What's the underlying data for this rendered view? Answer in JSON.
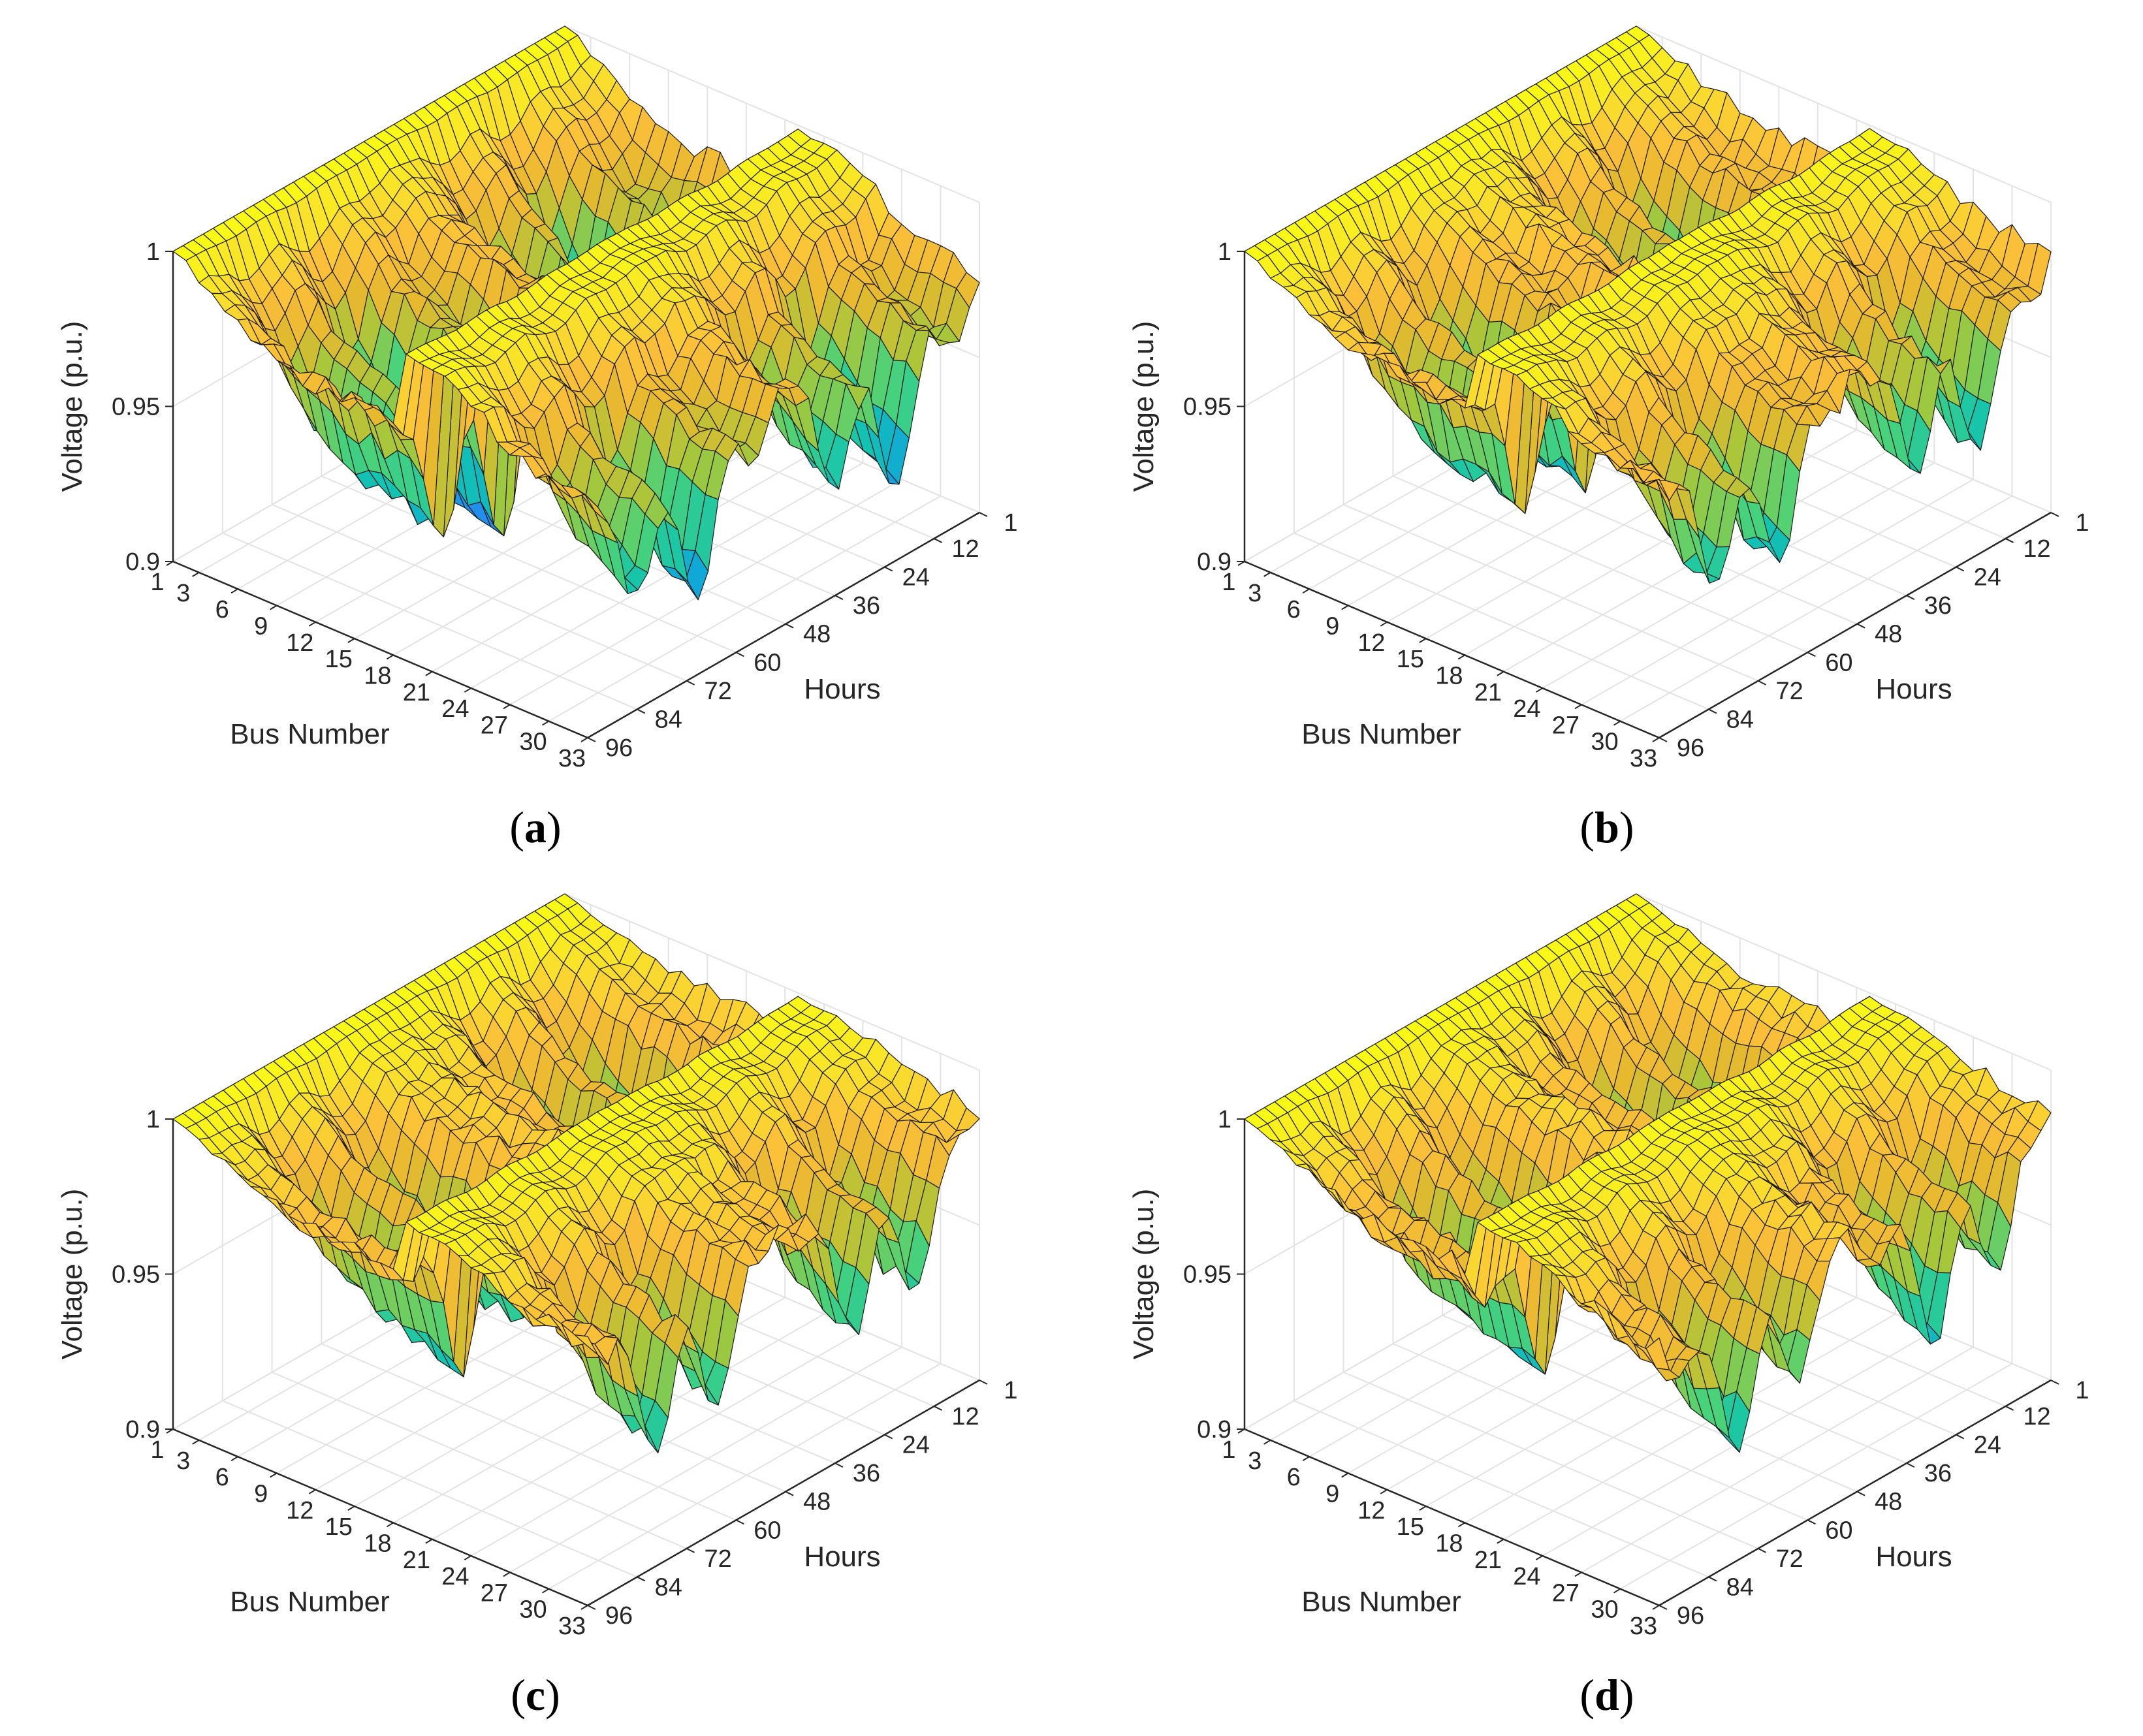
{
  "panels": [
    {
      "caption": "a",
      "profile": "a"
    },
    {
      "caption": "b",
      "profile": "b"
    },
    {
      "caption": "c",
      "profile": "c"
    },
    {
      "caption": "d",
      "profile": "d"
    }
  ],
  "axes": {
    "xlabel": "Bus Number",
    "ylabel": "Hours",
    "zlabel": "Voltage (p.u.)",
    "bus_ticks": [
      "1",
      "3",
      "6",
      "9",
      "12",
      "15",
      "18",
      "21",
      "24",
      "27",
      "30",
      "33"
    ],
    "hour_ticks": [
      "1",
      "12",
      "24",
      "36",
      "48",
      "60",
      "72",
      "84",
      "96"
    ],
    "voltage_ticks": [
      "0.9",
      "0.95",
      "1"
    ]
  },
  "colors": {
    "colormap": [
      "#3E26A8",
      "#4743F0",
      "#2C80F7",
      "#10A9D7",
      "#14C4AE",
      "#49D27A",
      "#A6C73B",
      "#E6B92F",
      "#FBBF3A",
      "#F9E02C",
      "#F9FB15"
    ],
    "edge": "#1a1a1a",
    "grid": "#e3e3e3",
    "axis": "#262626"
  },
  "chart_data": [
    {
      "type": "surface",
      "panel": "a",
      "x_label": "Bus Number",
      "y_label": "Hours",
      "z_label": "Voltage (p.u.)",
      "x_range": [
        1,
        33
      ],
      "y_range": [
        1,
        96
      ],
      "z_range": [
        0.9,
        1.0
      ],
      "buses": [
        1,
        2,
        3,
        4,
        5,
        6,
        7,
        8,
        9,
        10,
        11,
        12,
        13,
        14,
        15,
        16,
        17,
        18,
        19,
        20,
        21,
        22,
        23,
        24,
        25,
        26,
        27,
        28,
        29,
        30,
        31,
        32,
        33
      ],
      "voltage_by_bus_min": [
        1.0,
        0.997,
        0.983,
        0.975,
        0.968,
        0.955,
        0.945,
        0.938,
        0.933,
        0.929,
        0.927,
        0.925,
        0.923,
        0.922,
        0.921,
        0.92,
        0.919,
        0.918,
        0.997,
        0.993,
        0.992,
        0.991,
        0.982,
        0.975,
        0.972,
        0.953,
        0.95,
        0.942,
        0.936,
        0.934,
        0.928,
        0.927,
        0.924
      ],
      "voltage_by_bus_max": [
        1.0,
        0.999,
        0.995,
        0.993,
        0.991,
        0.988,
        0.986,
        0.985,
        0.984,
        0.983,
        0.982,
        0.982,
        0.981,
        0.981,
        0.98,
        0.98,
        0.98,
        0.98,
        0.999,
        0.998,
        0.998,
        0.998,
        0.995,
        0.993,
        0.992,
        0.987,
        0.986,
        0.984,
        0.983,
        0.982,
        0.981,
        0.981,
        0.98
      ]
    },
    {
      "type": "surface",
      "panel": "b",
      "x_label": "Bus Number",
      "y_label": "Hours",
      "z_label": "Voltage (p.u.)",
      "x_range": [
        1,
        33
      ],
      "y_range": [
        1,
        96
      ],
      "z_range": [
        0.9,
        1.0
      ],
      "buses": [
        1,
        2,
        3,
        4,
        5,
        6,
        7,
        8,
        9,
        10,
        11,
        12,
        13,
        14,
        15,
        16,
        17,
        18,
        19,
        20,
        21,
        22,
        23,
        24,
        25,
        26,
        27,
        28,
        29,
        30,
        31,
        32,
        33
      ],
      "voltage_by_bus_min": [
        1.0,
        0.997,
        0.985,
        0.979,
        0.973,
        0.962,
        0.955,
        0.95,
        0.945,
        0.941,
        0.939,
        0.937,
        0.935,
        0.934,
        0.933,
        0.932,
        0.931,
        0.93,
        0.997,
        0.993,
        0.992,
        0.991,
        0.983,
        0.977,
        0.974,
        0.958,
        0.955,
        0.948,
        0.942,
        0.94,
        0.935,
        0.934,
        0.931
      ],
      "voltage_by_bus_max": [
        1.0,
        0.999,
        0.997,
        0.996,
        0.995,
        0.993,
        0.992,
        0.991,
        0.99,
        0.989,
        0.989,
        0.988,
        0.988,
        0.988,
        0.987,
        0.987,
        0.987,
        0.987,
        0.999,
        0.998,
        0.998,
        0.998,
        0.996,
        0.995,
        0.994,
        0.991,
        0.99,
        0.989,
        0.988,
        0.988,
        0.987,
        0.987,
        0.987
      ]
    },
    {
      "type": "surface",
      "panel": "c",
      "x_label": "Bus Number",
      "y_label": "Hours",
      "z_label": "Voltage (p.u.)",
      "x_range": [
        1,
        33
      ],
      "y_range": [
        1,
        96
      ],
      "z_range": [
        0.9,
        1.0
      ],
      "buses": [
        1,
        2,
        3,
        4,
        5,
        6,
        7,
        8,
        9,
        10,
        11,
        12,
        13,
        14,
        15,
        16,
        17,
        18,
        19,
        20,
        21,
        22,
        23,
        24,
        25,
        26,
        27,
        28,
        29,
        30,
        31,
        32,
        33
      ],
      "voltage_by_bus_min": [
        1.0,
        0.997,
        0.986,
        0.98,
        0.975,
        0.965,
        0.958,
        0.953,
        0.949,
        0.945,
        0.943,
        0.941,
        0.939,
        0.938,
        0.937,
        0.936,
        0.935,
        0.934,
        0.997,
        0.993,
        0.992,
        0.991,
        0.984,
        0.978,
        0.976,
        0.961,
        0.958,
        0.951,
        0.946,
        0.944,
        0.939,
        0.938,
        0.935
      ],
      "voltage_by_bus_max": [
        1.0,
        0.999,
        0.998,
        0.997,
        0.996,
        0.995,
        0.994,
        0.993,
        0.993,
        0.992,
        0.992,
        0.992,
        0.991,
        0.991,
        0.991,
        0.991,
        0.991,
        0.991,
        0.999,
        0.998,
        0.998,
        0.998,
        0.997,
        0.996,
        0.996,
        0.994,
        0.993,
        0.992,
        0.992,
        0.992,
        0.991,
        0.991,
        0.991
      ]
    },
    {
      "type": "surface",
      "panel": "d",
      "x_label": "Bus Number",
      "y_label": "Hours",
      "z_label": "Voltage (p.u.)",
      "x_range": [
        1,
        33
      ],
      "y_range": [
        1,
        96
      ],
      "z_range": [
        0.9,
        1.0
      ],
      "buses": [
        1,
        2,
        3,
        4,
        5,
        6,
        7,
        8,
        9,
        10,
        11,
        12,
        13,
        14,
        15,
        16,
        17,
        18,
        19,
        20,
        21,
        22,
        23,
        24,
        25,
        26,
        27,
        28,
        29,
        30,
        31,
        32,
        33
      ],
      "voltage_by_bus_min": [
        1.0,
        0.997,
        0.985,
        0.98,
        0.974,
        0.964,
        0.957,
        0.952,
        0.948,
        0.944,
        0.942,
        0.94,
        0.938,
        0.937,
        0.936,
        0.935,
        0.934,
        0.933,
        0.997,
        0.993,
        0.992,
        0.991,
        0.984,
        0.978,
        0.975,
        0.96,
        0.957,
        0.95,
        0.945,
        0.943,
        0.938,
        0.937,
        0.934
      ],
      "voltage_by_bus_max": [
        1.0,
        0.999,
        0.998,
        0.997,
        0.996,
        0.995,
        0.994,
        0.993,
        0.992,
        0.992,
        0.991,
        0.991,
        0.991,
        0.991,
        0.99,
        0.99,
        0.99,
        0.99,
        0.999,
        0.998,
        0.998,
        0.998,
        0.997,
        0.996,
        0.995,
        0.993,
        0.992,
        0.992,
        0.991,
        0.991,
        0.99,
        0.99,
        0.99
      ]
    }
  ]
}
